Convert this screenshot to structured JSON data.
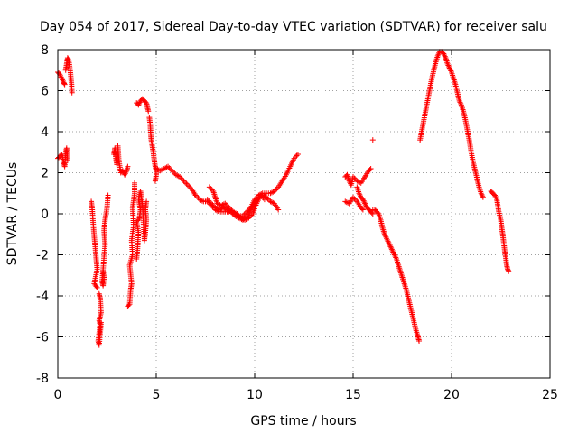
{
  "chart_data": {
    "type": "scatter",
    "title": "Day 054 of 2017, Sidereal Day-to-day VTEC variation (SDTVAR) for receiver salu",
    "xlabel": "GPS time / hours",
    "ylabel": "SDTVAR / TECUs",
    "xlim": [
      0,
      25
    ],
    "ylim": [
      -8,
      8
    ],
    "x_ticks": [
      0,
      5,
      10,
      15,
      20,
      25
    ],
    "y_ticks": [
      -8,
      -6,
      -4,
      -2,
      0,
      2,
      4,
      6,
      8
    ],
    "grid": true,
    "marker": "+",
    "color": "#ff0000",
    "series": [
      {
        "name": "SDTVAR",
        "traces": [
          [
            [
              0.0,
              6.9
            ],
            [
              0.1,
              6.8
            ],
            [
              0.2,
              6.6
            ],
            [
              0.3,
              6.4
            ],
            [
              0.35,
              6.3
            ]
          ],
          [
            [
              0.0,
              2.7
            ],
            [
              0.1,
              2.8
            ],
            [
              0.2,
              2.9
            ],
            [
              0.3,
              2.5
            ],
            [
              0.35,
              2.3
            ],
            [
              0.4,
              3.0
            ],
            [
              0.45,
              3.2
            ],
            [
              0.5,
              2.6
            ]
          ],
          [
            [
              0.4,
              7.0
            ],
            [
              0.45,
              7.3
            ],
            [
              0.5,
              7.6
            ],
            [
              0.55,
              7.5
            ],
            [
              0.6,
              7.2
            ],
            [
              0.65,
              6.8
            ],
            [
              0.7,
              6.3
            ],
            [
              0.72,
              5.9
            ]
          ],
          [
            [
              1.7,
              0.6
            ],
            [
              1.75,
              0.2
            ],
            [
              1.8,
              -0.5
            ],
            [
              1.85,
              -1.1
            ],
            [
              1.9,
              -1.6
            ],
            [
              1.95,
              -2.2
            ],
            [
              2.0,
              -2.7
            ],
            [
              1.85,
              -3.4
            ],
            [
              2.0,
              -3.6
            ]
          ],
          [
            [
              2.1,
              -3.9
            ],
            [
              2.15,
              -4.1
            ],
            [
              2.2,
              -4.8
            ],
            [
              2.1,
              -5.2
            ],
            [
              2.15,
              -5.4
            ],
            [
              2.1,
              -5.8
            ],
            [
              2.05,
              -6.2
            ],
            [
              2.1,
              -6.4
            ],
            [
              2.2,
              -5.3
            ]
          ],
          [
            [
              2.3,
              -2.8
            ],
            [
              2.35,
              -3.1
            ],
            [
              2.3,
              -3.5
            ],
            [
              2.25,
              -3.3
            ],
            [
              2.4,
              -1.5
            ],
            [
              2.35,
              -0.8
            ],
            [
              2.4,
              -0.3
            ],
            [
              2.5,
              0.3
            ],
            [
              2.55,
              0.9
            ]
          ],
          [
            [
              2.85,
              2.9
            ],
            [
              2.9,
              3.2
            ],
            [
              2.95,
              2.7
            ],
            [
              3.0,
              2.4
            ],
            [
              3.05,
              3.3
            ],
            [
              3.1,
              2.6
            ],
            [
              3.2,
              2.0
            ],
            [
              3.3,
              2.1
            ],
            [
              3.4,
              1.9
            ],
            [
              3.5,
              2.1
            ],
            [
              3.55,
              2.3
            ]
          ],
          [
            [
              3.55,
              -4.5
            ],
            [
              3.65,
              -4.4
            ],
            [
              3.7,
              -3.7
            ],
            [
              3.75,
              -3.4
            ],
            [
              3.65,
              -2.5
            ],
            [
              3.8,
              -2.0
            ],
            [
              3.75,
              -1.3
            ],
            [
              3.85,
              -0.6
            ],
            [
              3.8,
              0.3
            ],
            [
              3.9,
              1.0
            ],
            [
              3.9,
              1.5
            ]
          ],
          [
            [
              4.0,
              -2.2
            ],
            [
              4.05,
              -1.7
            ],
            [
              4.1,
              -0.9
            ],
            [
              4.0,
              -0.4
            ],
            [
              4.15,
              -0.2
            ],
            [
              4.2,
              0.2
            ],
            [
              4.1,
              0.7
            ],
            [
              4.2,
              1.1
            ],
            [
              4.3,
              0.5
            ],
            [
              4.35,
              -0.5
            ],
            [
              4.4,
              -1.3
            ],
            [
              4.45,
              -0.9
            ],
            [
              4.5,
              -0.3
            ],
            [
              4.45,
              0.2
            ],
            [
              4.5,
              0.6
            ]
          ],
          [
            [
              4.0,
              5.4
            ],
            [
              4.1,
              5.3
            ],
            [
              4.2,
              5.5
            ],
            [
              4.3,
              5.6
            ],
            [
              4.4,
              5.5
            ],
            [
              4.5,
              5.4
            ],
            [
              4.55,
              5.2
            ],
            [
              4.6,
              5.0
            ]
          ],
          [
            [
              4.65,
              4.7
            ],
            [
              4.7,
              4.3
            ],
            [
              4.72,
              3.9
            ],
            [
              4.75,
              3.6
            ],
            [
              4.8,
              3.3
            ],
            [
              4.85,
              3.0
            ],
            [
              4.9,
              2.6
            ],
            [
              4.95,
              2.3
            ],
            [
              5.0,
              2.1
            ],
            [
              5.0,
              1.9
            ],
            [
              4.95,
              1.6
            ]
          ],
          [
            [
              5.0,
              2.2
            ],
            [
              5.2,
              2.1
            ],
            [
              5.4,
              2.2
            ],
            [
              5.6,
              2.3
            ],
            [
              5.8,
              2.1
            ],
            [
              6.0,
              1.9
            ],
            [
              6.2,
              1.8
            ],
            [
              6.4,
              1.6
            ],
            [
              6.6,
              1.4
            ],
            [
              6.8,
              1.2
            ],
            [
              7.0,
              0.9
            ],
            [
              7.2,
              0.7
            ],
            [
              7.4,
              0.6
            ],
            [
              7.6,
              0.6
            ],
            [
              7.8,
              0.4
            ],
            [
              8.0,
              0.2
            ],
            [
              8.2,
              0.1
            ],
            [
              8.4,
              0.1
            ],
            [
              8.6,
              0.1
            ],
            [
              8.8,
              0.1
            ],
            [
              9.0,
              0.0
            ],
            [
              9.2,
              -0.1
            ],
            [
              9.4,
              -0.1
            ],
            [
              9.6,
              0.1
            ],
            [
              9.8,
              0.3
            ],
            [
              10.0,
              0.7
            ],
            [
              10.2,
              0.9
            ],
            [
              10.4,
              1.0
            ],
            [
              10.6,
              1.0
            ],
            [
              10.8,
              1.0
            ],
            [
              11.0,
              1.1
            ],
            [
              11.2,
              1.3
            ],
            [
              11.4,
              1.6
            ],
            [
              11.6,
              1.9
            ],
            [
              11.8,
              2.3
            ],
            [
              12.0,
              2.7
            ],
            [
              12.2,
              2.9
            ]
          ],
          [
            [
              7.6,
              0.7
            ],
            [
              7.8,
              0.5
            ],
            [
              8.0,
              0.3
            ],
            [
              8.2,
              0.2
            ],
            [
              8.4,
              0.3
            ],
            [
              8.6,
              0.2
            ],
            [
              8.8,
              0.1
            ],
            [
              9.0,
              -0.1
            ],
            [
              9.2,
              -0.2
            ],
            [
              9.4,
              -0.3
            ],
            [
              9.6,
              -0.1
            ],
            [
              9.8,
              0.2
            ],
            [
              10.0,
              0.5
            ],
            [
              10.2,
              0.8
            ],
            [
              10.4,
              0.9
            ],
            [
              10.6,
              0.8
            ],
            [
              10.8,
              0.6
            ],
            [
              11.0,
              0.5
            ],
            [
              11.2,
              0.2
            ]
          ],
          [
            [
              7.7,
              1.3
            ],
            [
              7.9,
              1.1
            ],
            [
              8.0,
              0.8
            ],
            [
              8.1,
              0.5
            ],
            [
              8.3,
              0.4
            ],
            [
              8.5,
              0.5
            ],
            [
              8.7,
              0.3
            ],
            [
              8.9,
              0.1
            ],
            [
              9.1,
              0.0
            ],
            [
              9.3,
              -0.2
            ],
            [
              9.5,
              -0.3
            ],
            [
              9.7,
              -0.2
            ],
            [
              9.9,
              0.0
            ],
            [
              10.1,
              0.5
            ],
            [
              10.3,
              0.9
            ],
            [
              10.5,
              0.7
            ]
          ],
          [
            [
              14.6,
              1.8
            ],
            [
              14.7,
              1.9
            ],
            [
              14.8,
              1.6
            ],
            [
              14.9,
              1.4
            ],
            [
              15.0,
              1.8
            ],
            [
              15.2,
              1.6
            ],
            [
              15.4,
              1.5
            ],
            [
              15.6,
              1.8
            ],
            [
              15.8,
              2.1
            ],
            [
              15.9,
              2.2
            ]
          ],
          [
            [
              14.6,
              0.6
            ],
            [
              14.8,
              0.5
            ],
            [
              15.0,
              0.8
            ],
            [
              15.2,
              0.6
            ],
            [
              15.4,
              0.3
            ],
            [
              15.5,
              0.2
            ]
          ],
          [
            [
              15.2,
              1.3
            ],
            [
              15.3,
              1.0
            ],
            [
              15.4,
              0.8
            ],
            [
              15.5,
              0.7
            ],
            [
              15.6,
              0.5
            ],
            [
              15.7,
              0.3
            ],
            [
              15.8,
              0.2
            ],
            [
              15.9,
              0.1
            ],
            [
              16.0,
              0.0
            ]
          ],
          [
            [
              16.0,
              3.6
            ]
          ],
          [
            [
              16.0,
              0.2
            ],
            [
              16.1,
              0.2
            ],
            [
              16.2,
              0.1
            ],
            [
              16.3,
              0.0
            ],
            [
              16.4,
              -0.3
            ],
            [
              16.5,
              -0.7
            ],
            [
              16.6,
              -1.0
            ],
            [
              16.7,
              -1.2
            ],
            [
              16.8,
              -1.4
            ],
            [
              16.9,
              -1.6
            ],
            [
              17.0,
              -1.8
            ],
            [
              17.1,
              -2.0
            ],
            [
              17.2,
              -2.2
            ],
            [
              17.3,
              -2.5
            ],
            [
              17.4,
              -2.8
            ],
            [
              17.5,
              -3.1
            ],
            [
              17.6,
              -3.4
            ],
            [
              17.7,
              -3.7
            ],
            [
              17.8,
              -4.1
            ],
            [
              17.9,
              -4.5
            ],
            [
              18.0,
              -4.9
            ],
            [
              18.1,
              -5.3
            ],
            [
              18.2,
              -5.7
            ],
            [
              18.3,
              -6.0
            ],
            [
              18.35,
              -6.2
            ]
          ],
          [
            [
              18.4,
              3.6
            ],
            [
              18.5,
              4.1
            ],
            [
              18.6,
              4.6
            ],
            [
              18.7,
              5.1
            ],
            [
              18.8,
              5.6
            ],
            [
              18.9,
              6.1
            ],
            [
              19.0,
              6.6
            ],
            [
              19.1,
              7.0
            ],
            [
              19.2,
              7.4
            ],
            [
              19.3,
              7.7
            ],
            [
              19.4,
              7.9
            ],
            [
              19.5,
              7.9
            ],
            [
              19.6,
              7.8
            ],
            [
              19.7,
              7.6
            ],
            [
              19.8,
              7.3
            ],
            [
              19.9,
              7.1
            ],
            [
              20.0,
              6.9
            ],
            [
              20.1,
              6.6
            ],
            [
              20.2,
              6.3
            ],
            [
              20.3,
              5.9
            ],
            [
              20.4,
              5.5
            ],
            [
              20.5,
              5.3
            ],
            [
              20.6,
              5.0
            ],
            [
              20.7,
              4.6
            ],
            [
              20.8,
              4.1
            ],
            [
              20.9,
              3.6
            ],
            [
              21.0,
              3.0
            ],
            [
              21.1,
              2.5
            ],
            [
              21.2,
              2.1
            ],
            [
              21.3,
              1.7
            ],
            [
              21.4,
              1.3
            ],
            [
              21.5,
              1.0
            ],
            [
              21.6,
              0.8
            ]
          ],
          [
            [
              22.0,
              1.1
            ],
            [
              22.1,
              1.0
            ],
            [
              22.2,
              0.9
            ],
            [
              22.3,
              0.7
            ],
            [
              22.35,
              0.4
            ],
            [
              22.4,
              0.1
            ],
            [
              22.5,
              -0.3
            ],
            [
              22.55,
              -0.7
            ],
            [
              22.6,
              -1.0
            ],
            [
              22.65,
              -1.4
            ],
            [
              22.7,
              -1.8
            ],
            [
              22.75,
              -2.1
            ],
            [
              22.8,
              -2.5
            ],
            [
              22.85,
              -2.7
            ],
            [
              22.9,
              -2.8
            ]
          ]
        ]
      }
    ]
  }
}
